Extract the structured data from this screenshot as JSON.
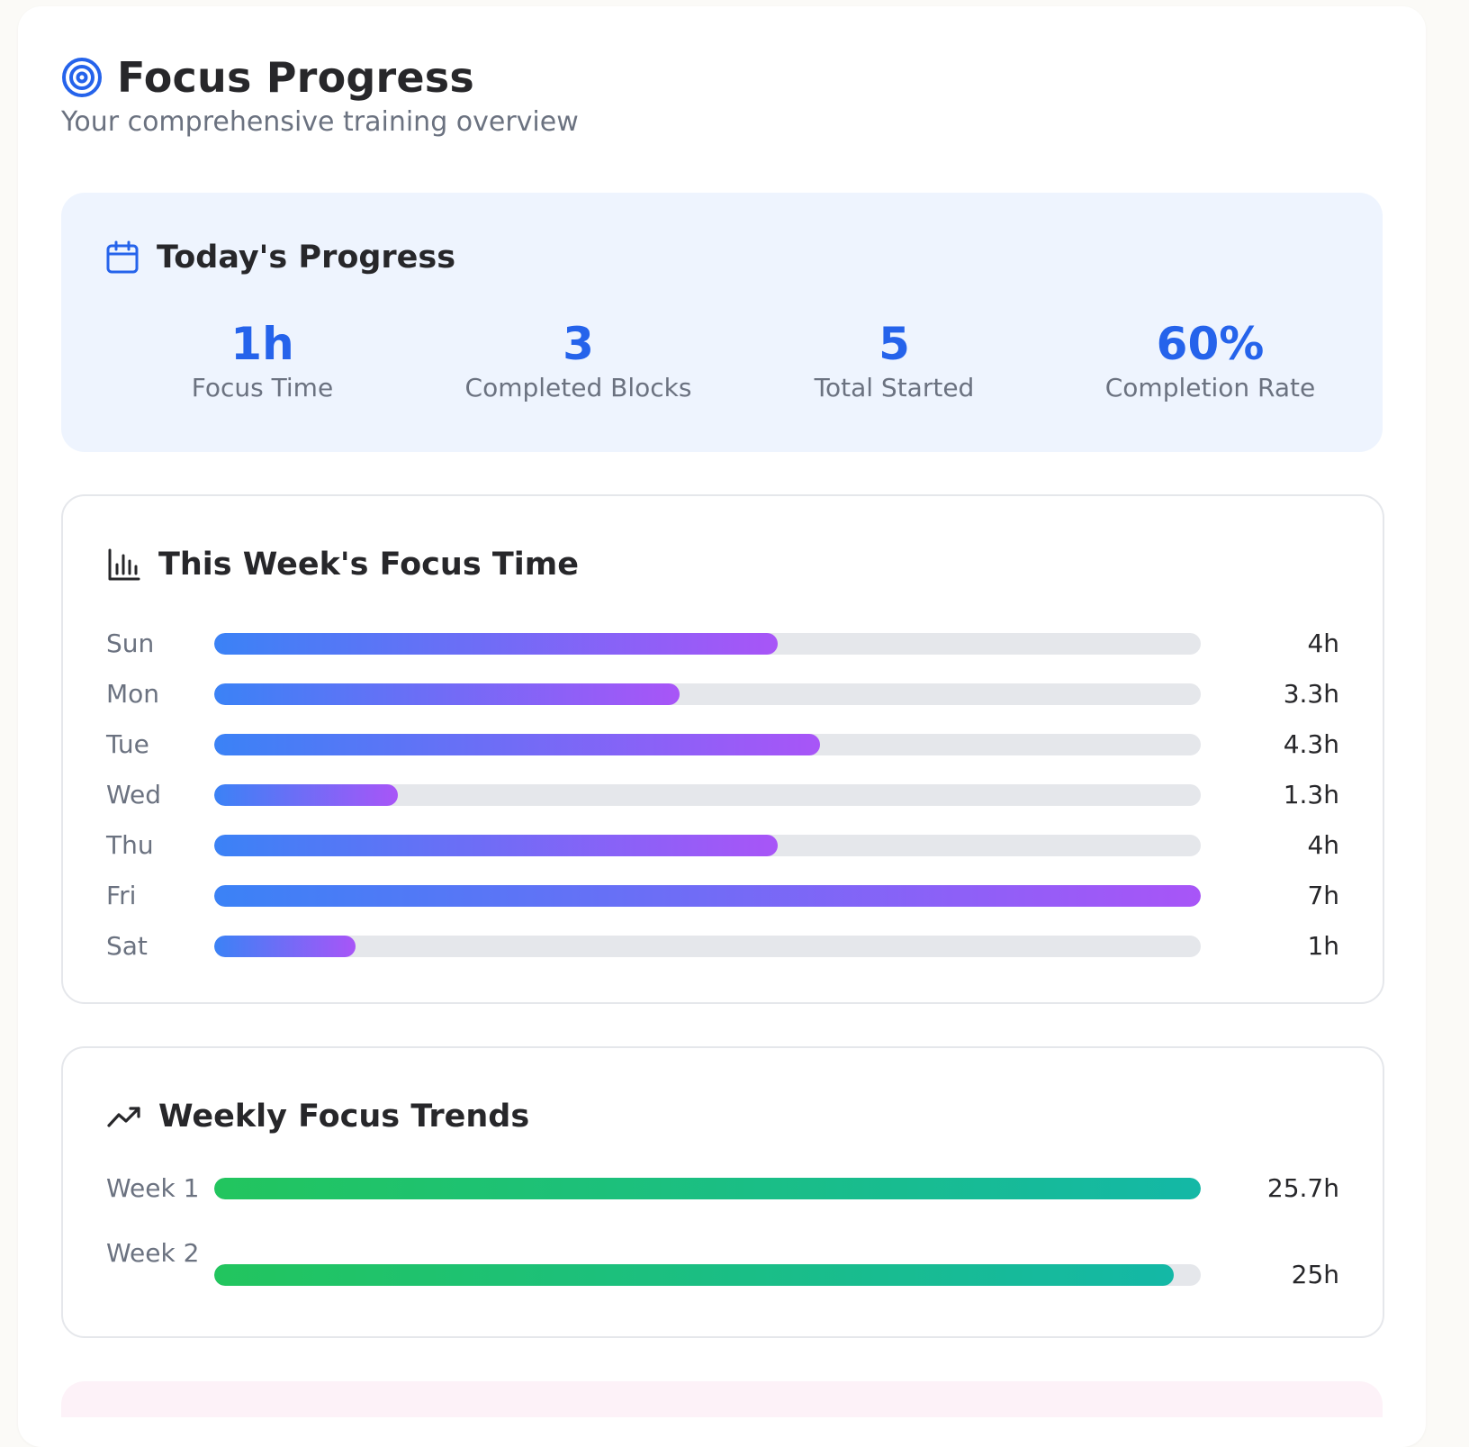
{
  "header": {
    "title": "Focus Progress",
    "subtitle": "Your comprehensive training overview",
    "icon": "target-icon"
  },
  "today": {
    "heading": "Today's Progress",
    "icon": "calendar-icon",
    "stats": [
      {
        "value": "1h",
        "label": "Focus Time"
      },
      {
        "value": "3",
        "label": "Completed Blocks"
      },
      {
        "value": "5",
        "label": "Total Started"
      },
      {
        "value": "60%",
        "label": "Completion Rate"
      }
    ]
  },
  "week": {
    "heading": "This Week's Focus Time",
    "icon": "bar-chart-icon",
    "max_hours": 7,
    "days": [
      {
        "day": "Sun",
        "hours": 4,
        "label": "4h"
      },
      {
        "day": "Mon",
        "hours": 3.3,
        "label": "3.3h"
      },
      {
        "day": "Tue",
        "hours": 4.3,
        "label": "4.3h"
      },
      {
        "day": "Wed",
        "hours": 1.3,
        "label": "1.3h"
      },
      {
        "day": "Thu",
        "hours": 4,
        "label": "4h"
      },
      {
        "day": "Fri",
        "hours": 7,
        "label": "7h"
      },
      {
        "day": "Sat",
        "hours": 1,
        "label": "1h"
      }
    ]
  },
  "trends": {
    "heading": "Weekly Focus Trends",
    "icon": "trending-up-icon",
    "max_hours": 25.7,
    "weeks": [
      {
        "week": "Week 1",
        "hours": 25.7,
        "label": "25.7h"
      },
      {
        "week": "Week 2",
        "hours": 25,
        "label": "25h"
      }
    ]
  },
  "colors": {
    "accent": "#2563eb",
    "bar_gradient_start": "#3b82f6",
    "bar_gradient_end": "#a855f7",
    "trend_gradient_start": "#22c55e",
    "trend_gradient_end": "#14b8a6",
    "today_background": "#eef4fe"
  }
}
